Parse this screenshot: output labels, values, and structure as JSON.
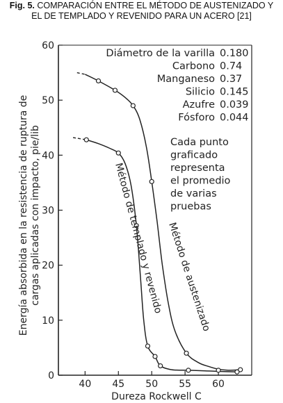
{
  "caption": {
    "label": "Fig. 5.",
    "text_line1": "COMPARACIÓN ENTRE EL MÉTODO DE AUSTENIZADO Y",
    "text_line2": "EL DE TEMPLADO Y REVENIDO PARA UN ACERO [21]"
  },
  "chart_data": {
    "type": "line",
    "xlabel": "Dureza Rockwell C",
    "ylabel_line1": "Energía absorbida en la resistencia de ruptura de",
    "ylabel_line2": "cargas aplicadas con impacto, pie/lib",
    "xlim": [
      36,
      65
    ],
    "ylim": [
      0,
      60
    ],
    "xticks": [
      40,
      45,
      50,
      55,
      60
    ],
    "yticks": [
      0,
      10,
      20,
      30,
      40,
      50,
      60
    ],
    "xtick_labels": [
      "40",
      "45",
      "50",
      "55",
      "60"
    ],
    "ytick_labels": [
      "0",
      "10",
      "20",
      "30",
      "40",
      "50",
      "60"
    ],
    "grid": false,
    "composition": [
      {
        "name": "Diámetro de la varilla",
        "value": "0.180"
      },
      {
        "name": "Carbono",
        "value": "0.74"
      },
      {
        "name": "Manganeso",
        "value": "0.37"
      },
      {
        "name": "Silicio",
        "value": "0.145"
      },
      {
        "name": "Azufre",
        "value": "0.039"
      },
      {
        "name": "Fósforo",
        "value": "0.044"
      }
    ],
    "note_lines": [
      "Cada punto",
      "graficado",
      "representa",
      "el promedio",
      "de varias",
      "pruebas"
    ],
    "series": [
      {
        "name": "Método de austenizado",
        "points": [
          [
            42,
            53.5
          ],
          [
            44.5,
            51.8
          ],
          [
            47.2,
            49
          ],
          [
            50,
            35.2
          ],
          [
            55.2,
            4
          ],
          [
            60,
            0.9
          ],
          [
            63.3,
            1
          ]
        ],
        "curve": [
          [
            38.8,
            55
          ],
          [
            40,
            54.7
          ],
          [
            42,
            53.5
          ],
          [
            44.5,
            51.8
          ],
          [
            46,
            50.5
          ],
          [
            47.2,
            49
          ],
          [
            48.2,
            46.5
          ],
          [
            49.2,
            41.5
          ],
          [
            50,
            35.2
          ],
          [
            50.8,
            28
          ],
          [
            51.6,
            20
          ],
          [
            52.5,
            13
          ],
          [
            53.5,
            8
          ],
          [
            55.2,
            4
          ],
          [
            57,
            2.3
          ],
          [
            58.5,
            1.6
          ],
          [
            60,
            1.1
          ],
          [
            61.5,
            0.9
          ],
          [
            63.3,
            1
          ]
        ],
        "extrapolated_until_x": 40
      },
      {
        "name": "Método de templado y revenido",
        "points": [
          [
            40.2,
            42.8
          ],
          [
            45,
            40.4
          ],
          [
            47.7,
            27.2
          ],
          [
            49.4,
            5.3
          ],
          [
            50.5,
            3.4
          ],
          [
            51.3,
            1.7
          ],
          [
            55.5,
            0.9
          ],
          [
            62.8,
            0.6
          ]
        ],
        "curve": [
          [
            38.2,
            43.2
          ],
          [
            40.2,
            42.8
          ],
          [
            42,
            42.1
          ],
          [
            43.6,
            41.3
          ],
          [
            45,
            40.4
          ],
          [
            46,
            38.5
          ],
          [
            46.9,
            34.5
          ],
          [
            47.7,
            27.2
          ],
          [
            48.3,
            18
          ],
          [
            48.8,
            10
          ],
          [
            49.4,
            5.3
          ],
          [
            50.5,
            3.4
          ],
          [
            51.3,
            1.7
          ],
          [
            53,
            1
          ],
          [
            55.5,
            0.9
          ],
          [
            58,
            0.8
          ],
          [
            60,
            0.7
          ],
          [
            62.8,
            0.6
          ]
        ],
        "extrapolated_until_x": 40.2
      }
    ]
  }
}
